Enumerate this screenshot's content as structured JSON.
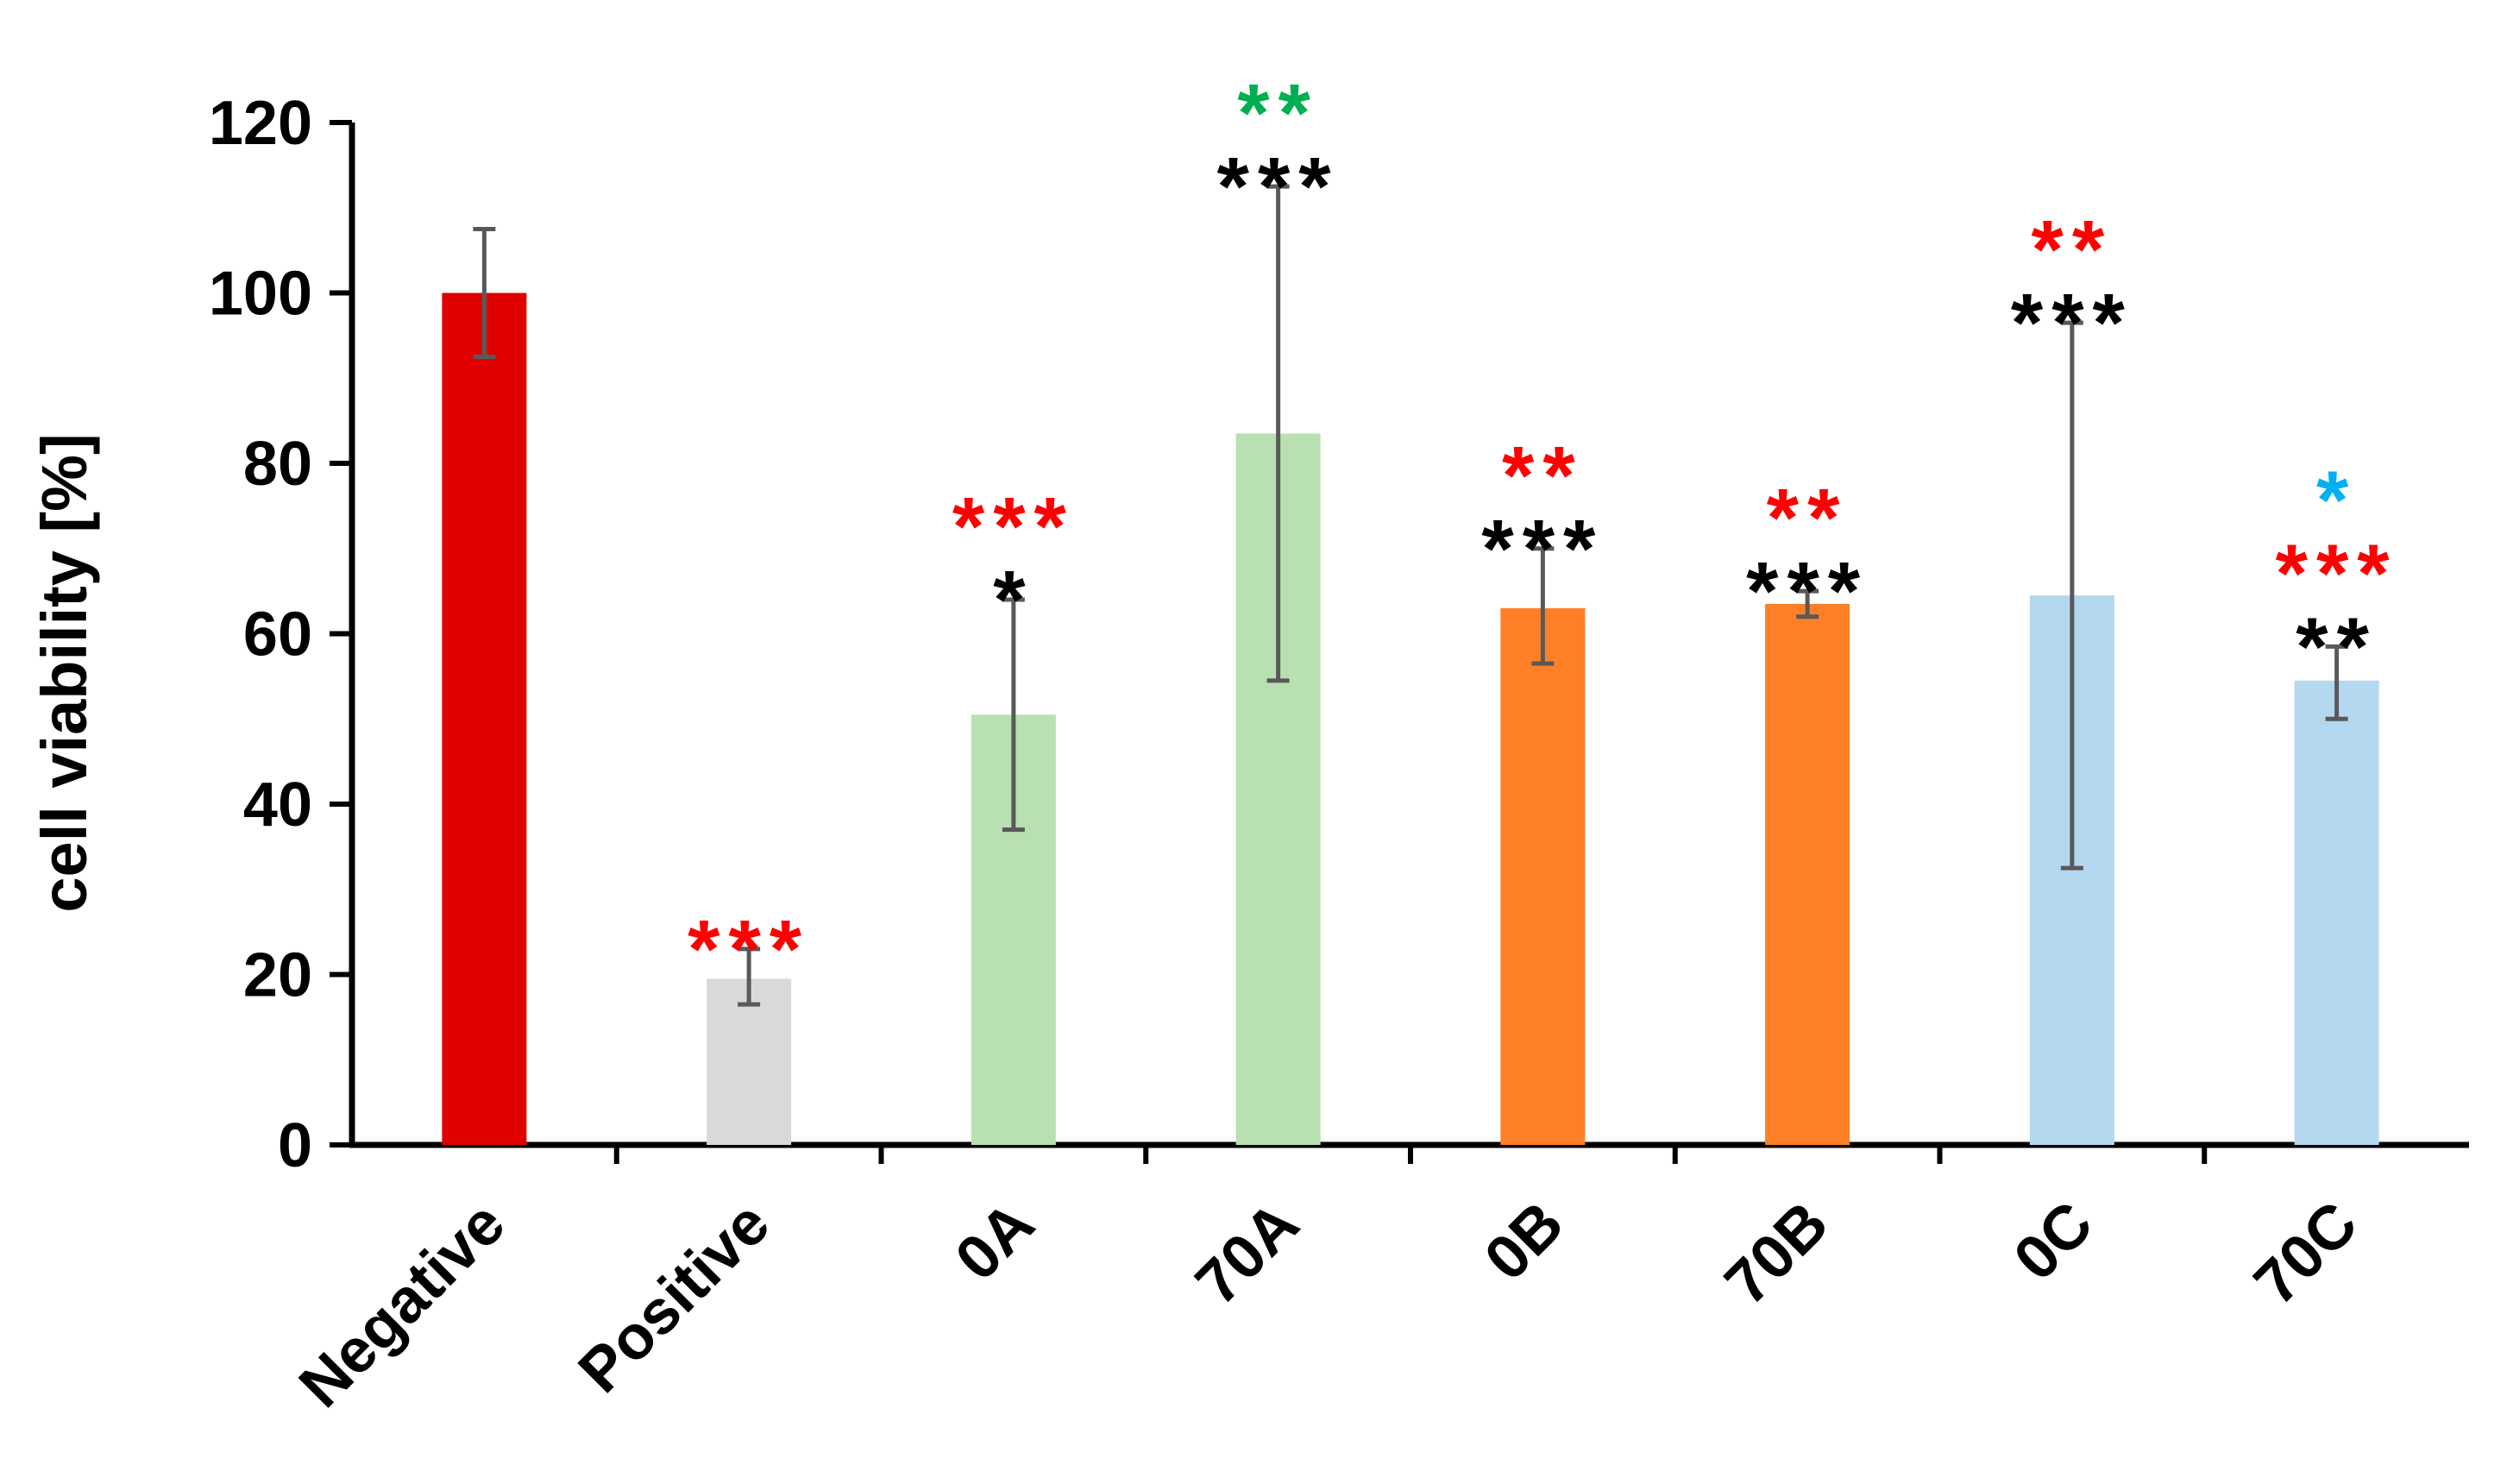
{
  "chart_data": {
    "type": "bar",
    "title": "",
    "xlabel": "",
    "ylabel": "cell viability [%]",
    "ylim": [
      0,
      120
    ],
    "yticks": [
      0,
      20,
      40,
      60,
      80,
      100,
      120
    ],
    "grid": false,
    "legend": "none",
    "categories": [
      "Negative",
      "Positive",
      "0A",
      "70A",
      "0B",
      "70B",
      "0C",
      "70C"
    ],
    "values": [
      100,
      19.5,
      50.5,
      83.5,
      63,
      63.5,
      64.5,
      54.5
    ],
    "error_low": [
      92.5,
      16.5,
      37,
      54.5,
      56.5,
      62,
      32.5,
      50
    ],
    "error_high": [
      107.5,
      23,
      64,
      112.5,
      70,
      65,
      96.5,
      58.5
    ],
    "bar_colors": [
      "#e00000",
      "#d9d9d9",
      "#b9e0b0",
      "#b9e0b0",
      "#ff7f27",
      "#ff7f27",
      "#b4d8ef",
      "#b4d8ef"
    ],
    "error_bar_color": "#595959",
    "annotations": [
      [],
      [
        {
          "text": "***",
          "color": "#ff0000"
        }
      ],
      [
        {
          "text": "*",
          "color": "#000000"
        },
        {
          "text": "***",
          "color": "#ff0000"
        }
      ],
      [
        {
          "text": "***",
          "color": "#000000"
        },
        {
          "text": "**",
          "color": "#00b050"
        }
      ],
      [
        {
          "text": "***",
          "color": "#000000"
        },
        {
          "text": "**",
          "color": "#ff0000"
        }
      ],
      [
        {
          "text": "***",
          "color": "#000000"
        },
        {
          "text": "**",
          "color": "#ff0000"
        }
      ],
      [
        {
          "text": "***",
          "color": "#000000"
        },
        {
          "text": "**",
          "color": "#ff0000"
        }
      ],
      [
        {
          "text": "**",
          "color": "#000000"
        },
        {
          "text": "***",
          "color": "#ff0000"
        },
        {
          "text": "*",
          "color": "#00b0f0"
        }
      ]
    ]
  }
}
